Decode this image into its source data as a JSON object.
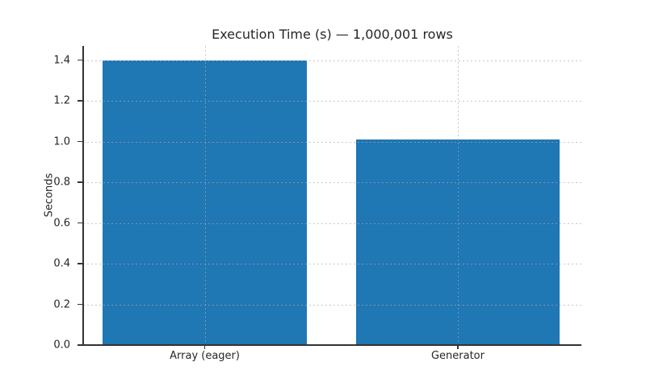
{
  "chart_data": {
    "type": "bar",
    "title": "Execution Time (s) — 1,000,001 rows",
    "categories": [
      "Array (eager)",
      "Generator"
    ],
    "values": [
      1.4,
      1.01
    ],
    "xlabel": "",
    "ylabel": "Seconds",
    "ylim": [
      0,
      1.47
    ],
    "yticks": [
      0.0,
      0.2,
      0.4,
      0.6,
      0.8,
      1.0,
      1.2,
      1.4
    ],
    "ytick_labels": [
      "0.0",
      "0.2",
      "0.4",
      "0.6",
      "0.8",
      "1.0",
      "1.2",
      "1.4"
    ],
    "grid": "dotted gridlines on both axes, drawn over bars",
    "legend": "none",
    "bar_color": "#1f77b4",
    "grid_color": "#aaaaaa",
    "text_color": "#262626",
    "spine_color": "#333333"
  }
}
